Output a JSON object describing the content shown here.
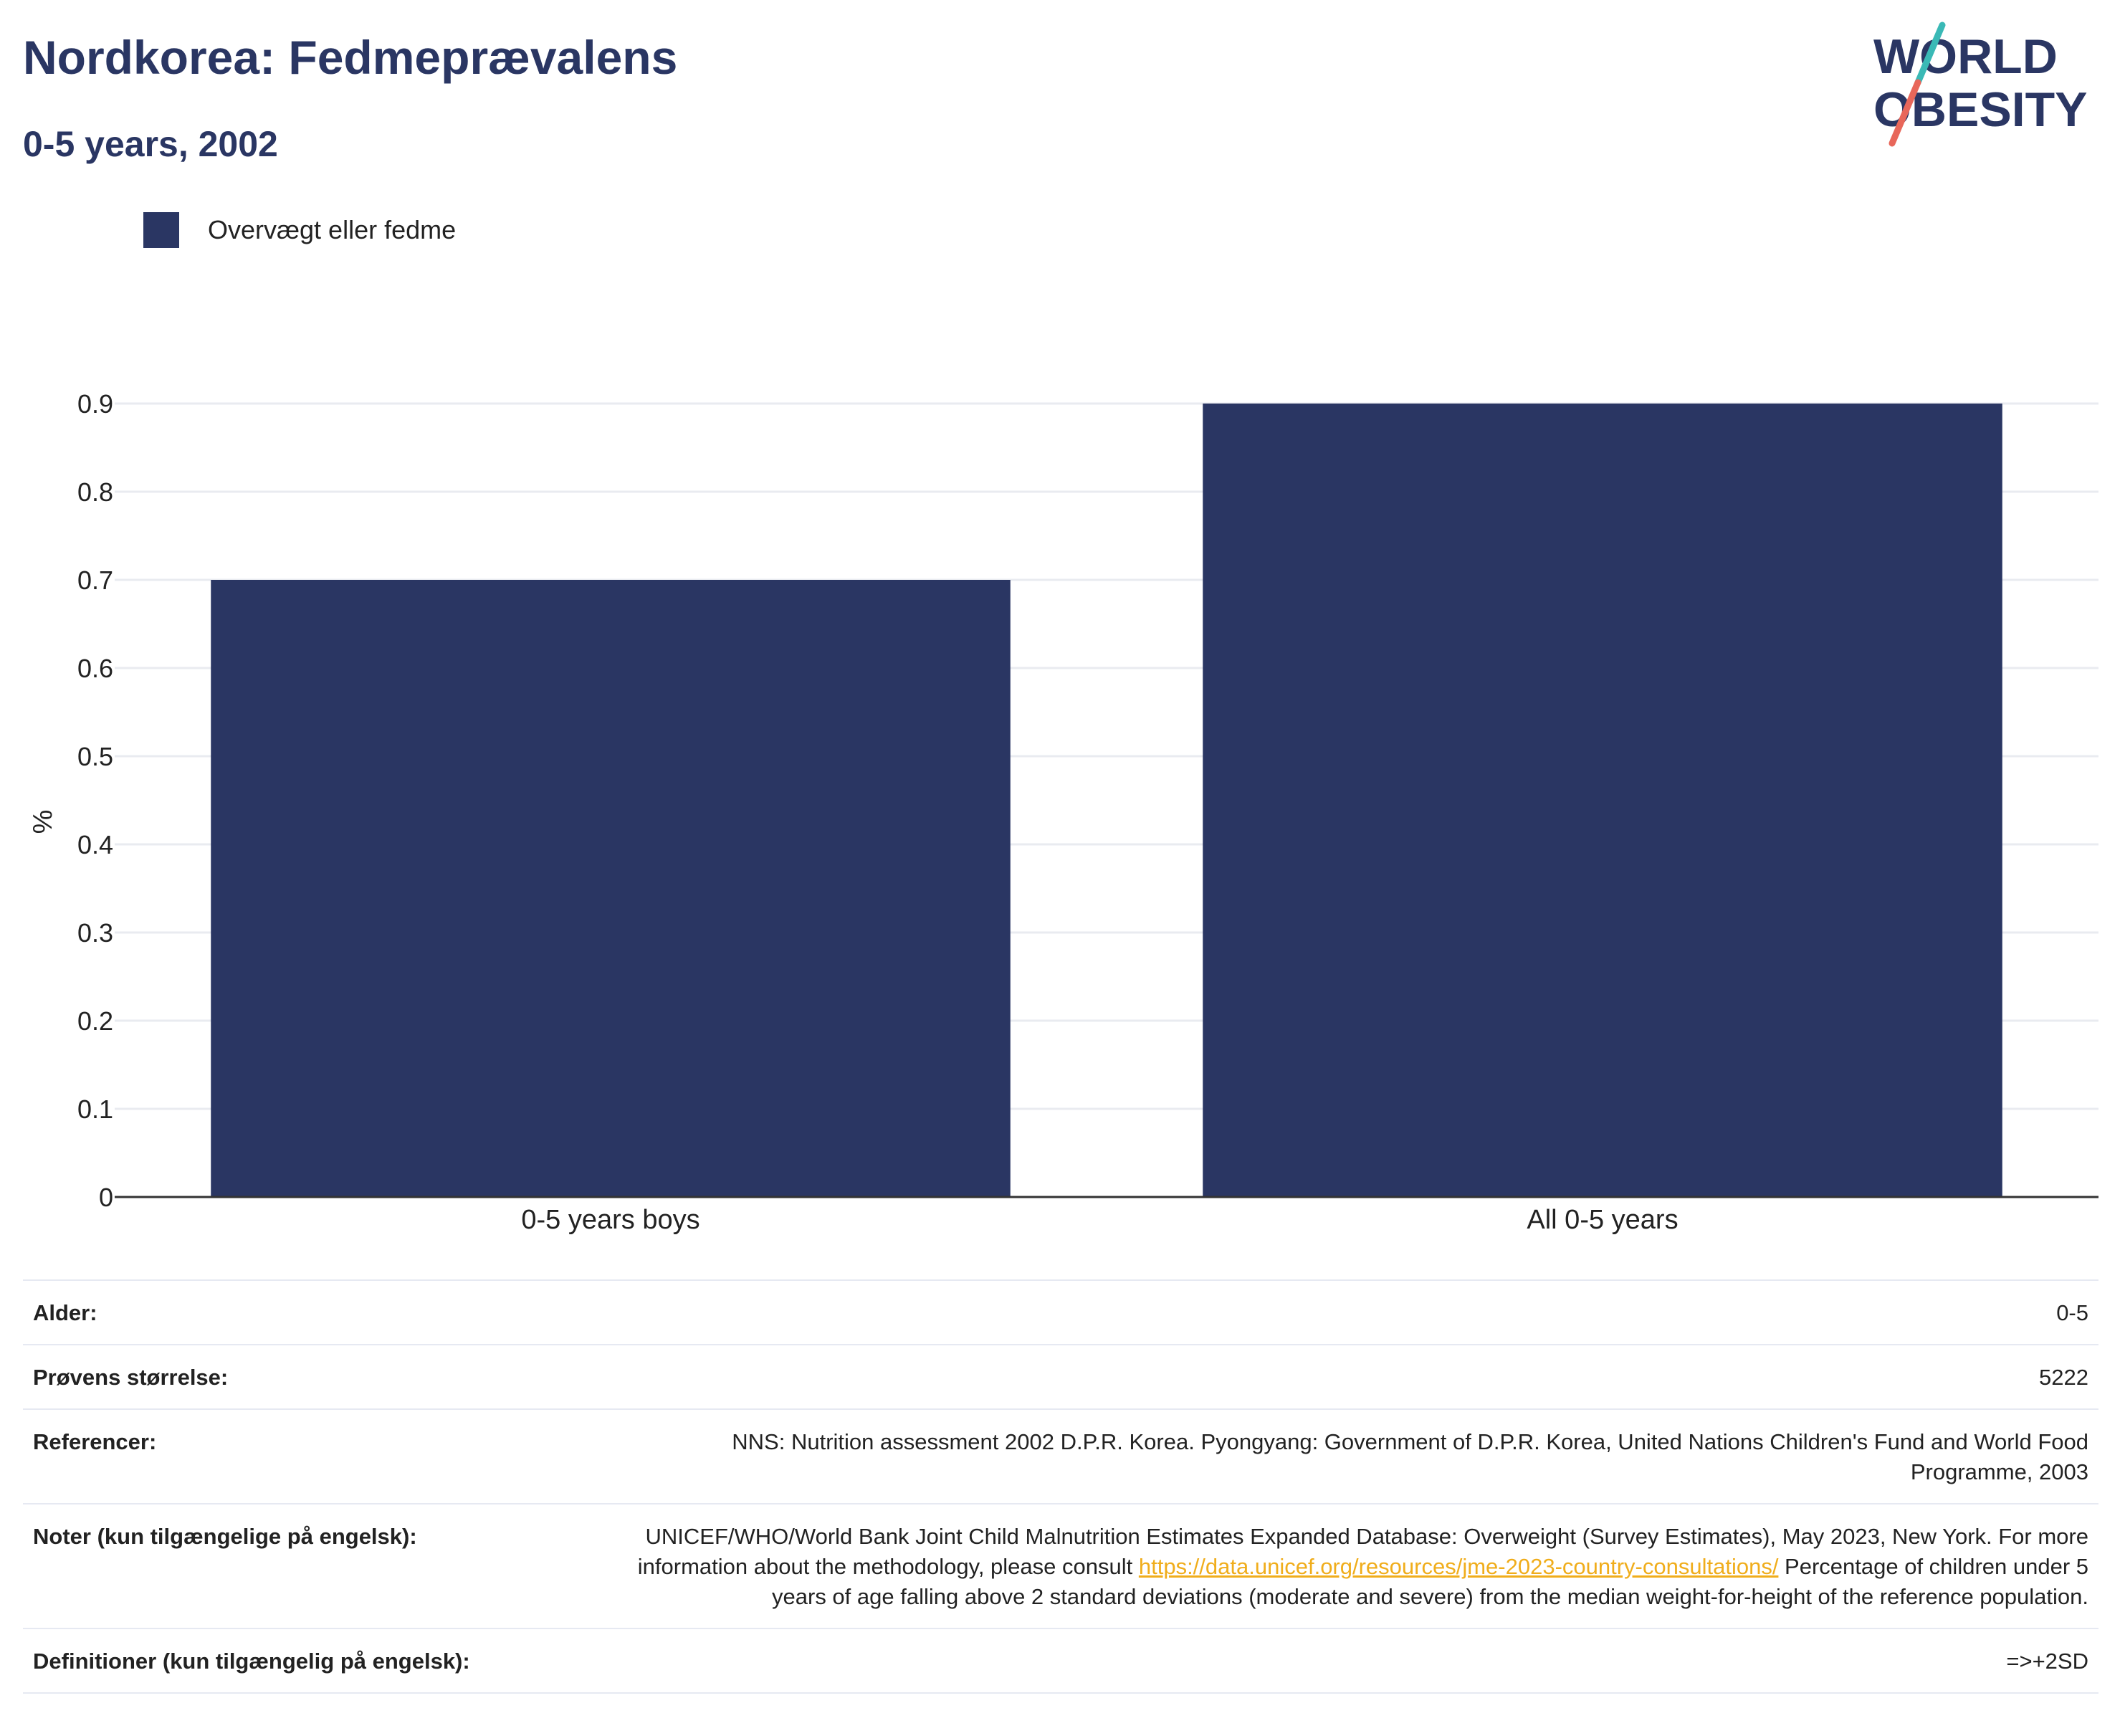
{
  "header": {
    "title": "Nordkorea: Fedmeprævalens",
    "subtitle": "0-5 years, 2002"
  },
  "logo": {
    "line1": "WORLD",
    "line2": "OBESITY",
    "colors": {
      "text": "#2a3663",
      "slash_top": "#3ab9b6",
      "slash_bottom": "#e8675a"
    }
  },
  "colors": {
    "bar": "#2a3663",
    "grid": "#e9ebf0",
    "axis": "#333333",
    "link": "#f0ad1b"
  },
  "chart_data": {
    "type": "bar",
    "categories": [
      "0-5 years boys",
      "All 0-5 years"
    ],
    "series": [
      {
        "name": "Overvægt eller fedme",
        "values": [
          0.7,
          0.9
        ]
      }
    ],
    "title": "Nordkorea: Fedmeprævalens",
    "subtitle": "0-5 years, 2002",
    "xlabel": "",
    "ylabel": "%",
    "ylim": [
      0,
      0.9
    ],
    "yticks": [
      "0",
      "0.1",
      "0.2",
      "0.3",
      "0.4",
      "0.5",
      "0.6",
      "0.7",
      "0.8",
      "0.9"
    ],
    "grid": true,
    "legend": "top-left"
  },
  "info": {
    "rows": [
      {
        "label": "Alder:",
        "value": "0-5"
      },
      {
        "label": "Prøvens størrelse:",
        "value": "5222"
      },
      {
        "label": "Referencer:",
        "value": "NNS: Nutrition assessment 2002 D.P.R. Korea. Pyongyang: Government of D.P.R. Korea, United Nations Children's Fund and World Food Programme, 2003"
      },
      {
        "label": "Noter (kun tilgængelige på engelsk):",
        "value_before": "UNICEF/WHO/World Bank Joint Child Malnutrition Estimates Expanded Database: Overweight (Survey Estimates), May 2023, New York. For more information about the methodology, please consult ",
        "link": "https://data.unicef.org/resources/jme-2023-country-consultations/",
        "value_after": " Percentage of children under 5 years of age falling above 2 standard deviations (moderate and severe) from the median weight-for-height of the reference population."
      },
      {
        "label": "Definitioner (kun tilgængelig på engelsk):",
        "value": "=>+2SD"
      }
    ]
  }
}
